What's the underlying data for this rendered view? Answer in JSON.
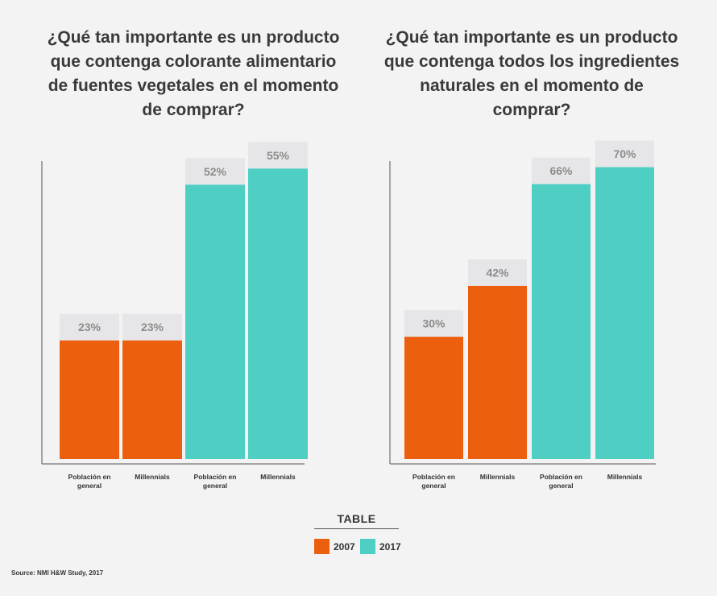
{
  "chart_data": [
    {
      "type": "bar",
      "title": "¿Qué tan importante es un producto que contenga colorante alimentario de fuentes vegetales en el momento de comprar?",
      "categories": [
        "Población en general",
        "Millennials",
        "Población en general",
        "Millennials"
      ],
      "values": [
        23,
        23,
        52,
        55
      ],
      "value_labels": [
        "23%",
        "23%",
        "52%",
        "55%"
      ],
      "bar_series": [
        "2007",
        "2007",
        "2017",
        "2017"
      ],
      "ylim": [
        0,
        60
      ],
      "grid": false
    },
    {
      "type": "bar",
      "title": "¿Qué tan importante es un producto que contenga todos los ingredientes naturales en el momento de comprar?",
      "categories": [
        "Población en general",
        "Millennials",
        "Población en general",
        "Millennials"
      ],
      "values": [
        30,
        42,
        66,
        70
      ],
      "value_labels": [
        "30%",
        "42%",
        "66%",
        "70%"
      ],
      "bar_series": [
        "2007",
        "2007",
        "2017",
        "2017"
      ],
      "ylim": [
        0,
        76
      ],
      "grid": false
    }
  ],
  "legend": {
    "title": "TABLE",
    "placement": "bottom-center",
    "items": [
      {
        "label": "2007",
        "color": "#ec5f0e"
      },
      {
        "label": "2017",
        "color": "#4fcec4"
      }
    ]
  },
  "source": "Source: NMI H&W Study, 2017",
  "colors": {
    "series_2007": "#ec5f0e",
    "series_2017": "#4fcec4",
    "label_box": "#e6e6e8",
    "label_text": "#8c8c8c",
    "axis": "#555555"
  }
}
